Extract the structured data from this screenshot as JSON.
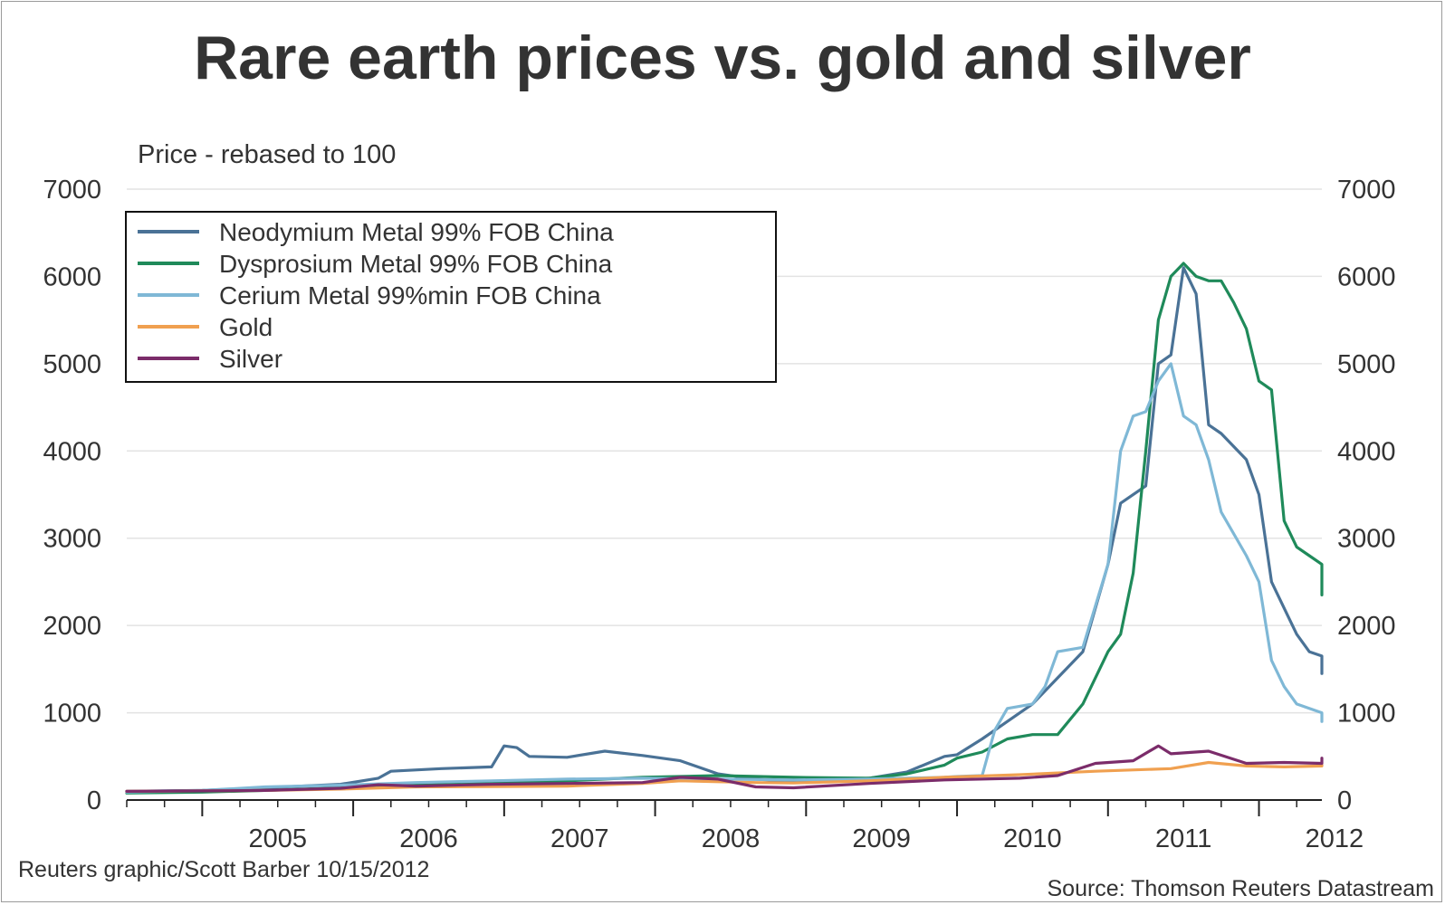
{
  "chart_data": {
    "type": "line",
    "title": "Rare earth prices vs. gold and silver",
    "ylabel": "Price - rebased to 100",
    "ylim": [
      0,
      7000
    ],
    "yticks": [
      0,
      1000,
      2000,
      3000,
      4000,
      5000,
      6000,
      7000
    ],
    "xlim": [
      "2004-07",
      "2012-06"
    ],
    "xtick_labels": [
      "2005",
      "2006",
      "2007",
      "2008",
      "2009",
      "2010",
      "2011",
      "2012"
    ],
    "grid": true,
    "legend_position": "top-left",
    "credit": "Reuters graphic/Scott Barber 10/15/2012",
    "source": "Source: Thomson Reuters Datastream",
    "series": [
      {
        "name": "Neodymium Metal 99% FOB China",
        "color": "#4a7296",
        "points": [
          [
            "2004-07",
            100
          ],
          [
            "2005-01",
            110
          ],
          [
            "2005-06",
            140
          ],
          [
            "2005-12",
            180
          ],
          [
            "2006-03",
            250
          ],
          [
            "2006-04",
            330
          ],
          [
            "2006-08",
            360
          ],
          [
            "2006-12",
            380
          ],
          [
            "2007-01",
            620
          ],
          [
            "2007-02",
            600
          ],
          [
            "2007-03",
            500
          ],
          [
            "2007-06",
            490
          ],
          [
            "2007-09",
            560
          ],
          [
            "2007-12",
            510
          ],
          [
            "2008-03",
            450
          ],
          [
            "2008-06",
            300
          ],
          [
            "2008-09",
            240
          ],
          [
            "2008-12",
            210
          ],
          [
            "2009-03",
            220
          ],
          [
            "2009-06",
            250
          ],
          [
            "2009-09",
            320
          ],
          [
            "2009-12",
            500
          ],
          [
            "2010-01",
            520
          ],
          [
            "2010-03",
            700
          ],
          [
            "2010-05",
            900
          ],
          [
            "2010-07",
            1100
          ],
          [
            "2010-09",
            1400
          ],
          [
            "2010-11",
            1700
          ],
          [
            "2011-01",
            2700
          ],
          [
            "2011-02",
            3400
          ],
          [
            "2011-04",
            3600
          ],
          [
            "2011-05",
            5000
          ],
          [
            "2011-06",
            5100
          ],
          [
            "2011-07",
            6100
          ],
          [
            "2011-08",
            5800
          ],
          [
            "2011-09",
            4300
          ],
          [
            "2011-10",
            4200
          ],
          [
            "2011-12",
            3900
          ],
          [
            "2012-01",
            3500
          ],
          [
            "2012-02",
            2500
          ],
          [
            "2012-03",
            2200
          ],
          [
            "2012-04",
            1900
          ],
          [
            "2012-05",
            1700
          ],
          [
            "2012-06",
            1650
          ],
          [
            "2012-06",
            1450
          ]
        ]
      },
      {
        "name": "Dysprosium Metal 99% FOB China",
        "color": "#1f8a5a",
        "points": [
          [
            "2004-07",
            80
          ],
          [
            "2005-01",
            90
          ],
          [
            "2005-06",
            110
          ],
          [
            "2005-12",
            140
          ],
          [
            "2006-06",
            170
          ],
          [
            "2006-12",
            190
          ],
          [
            "2007-06",
            220
          ],
          [
            "2007-12",
            260
          ],
          [
            "2008-06",
            280
          ],
          [
            "2008-12",
            260
          ],
          [
            "2009-06",
            250
          ],
          [
            "2009-09",
            300
          ],
          [
            "2009-12",
            400
          ],
          [
            "2010-01",
            480
          ],
          [
            "2010-03",
            550
          ],
          [
            "2010-05",
            700
          ],
          [
            "2010-07",
            750
          ],
          [
            "2010-09",
            750
          ],
          [
            "2010-11",
            1100
          ],
          [
            "2011-01",
            1700
          ],
          [
            "2011-02",
            1900
          ],
          [
            "2011-03",
            2600
          ],
          [
            "2011-04",
            4000
          ],
          [
            "2011-05",
            5500
          ],
          [
            "2011-06",
            6000
          ],
          [
            "2011-07",
            6150
          ],
          [
            "2011-08",
            6000
          ],
          [
            "2011-09",
            5950
          ],
          [
            "2011-10",
            5950
          ],
          [
            "2011-11",
            5700
          ],
          [
            "2011-12",
            5400
          ],
          [
            "2012-01",
            4800
          ],
          [
            "2012-02",
            4700
          ],
          [
            "2012-03",
            3200
          ],
          [
            "2012-04",
            2900
          ],
          [
            "2012-05",
            2800
          ],
          [
            "2012-06",
            2700
          ],
          [
            "2012-06",
            2350
          ]
        ]
      },
      {
        "name": "Cerium Metal 99%min FOB China",
        "color": "#7fb8d6",
        "points": [
          [
            "2004-07",
            90
          ],
          [
            "2005-01",
            110
          ],
          [
            "2005-06",
            150
          ],
          [
            "2005-12",
            170
          ],
          [
            "2006-06",
            200
          ],
          [
            "2006-12",
            220
          ],
          [
            "2007-06",
            240
          ],
          [
            "2007-12",
            250
          ],
          [
            "2008-06",
            240
          ],
          [
            "2008-12",
            230
          ],
          [
            "2009-06",
            240
          ],
          [
            "2009-09",
            250
          ],
          [
            "2009-12",
            260
          ],
          [
            "2010-01",
            270
          ],
          [
            "2010-03",
            280
          ],
          [
            "2010-04",
            800
          ],
          [
            "2010-05",
            1050
          ],
          [
            "2010-07",
            1100
          ],
          [
            "2010-08",
            1300
          ],
          [
            "2010-09",
            1700
          ],
          [
            "2010-11",
            1750
          ],
          [
            "2011-01",
            2700
          ],
          [
            "2011-02",
            4000
          ],
          [
            "2011-03",
            4400
          ],
          [
            "2011-04",
            4450
          ],
          [
            "2011-05",
            4800
          ],
          [
            "2011-06",
            5000
          ],
          [
            "2011-07",
            4400
          ],
          [
            "2011-08",
            4300
          ],
          [
            "2011-09",
            3900
          ],
          [
            "2011-10",
            3300
          ],
          [
            "2011-12",
            2800
          ],
          [
            "2012-01",
            2500
          ],
          [
            "2012-02",
            1600
          ],
          [
            "2012-03",
            1300
          ],
          [
            "2012-04",
            1100
          ],
          [
            "2012-05",
            1050
          ],
          [
            "2012-06",
            1000
          ],
          [
            "2012-06",
            900
          ]
        ]
      },
      {
        "name": "Gold",
        "color": "#f0a050",
        "points": [
          [
            "2004-07",
            100
          ],
          [
            "2005-01",
            105
          ],
          [
            "2005-06",
            110
          ],
          [
            "2005-12",
            125
          ],
          [
            "2006-06",
            150
          ],
          [
            "2006-12",
            155
          ],
          [
            "2007-06",
            160
          ],
          [
            "2007-12",
            190
          ],
          [
            "2008-03",
            220
          ],
          [
            "2008-06",
            210
          ],
          [
            "2008-09",
            200
          ],
          [
            "2008-12",
            195
          ],
          [
            "2009-06",
            220
          ],
          [
            "2009-12",
            260
          ],
          [
            "2010-06",
            290
          ],
          [
            "2010-12",
            330
          ],
          [
            "2011-06",
            360
          ],
          [
            "2011-09",
            430
          ],
          [
            "2011-12",
            390
          ],
          [
            "2012-03",
            380
          ],
          [
            "2012-06",
            390
          ],
          [
            "2012-06",
            400
          ]
        ]
      },
      {
        "name": "Silver",
        "color": "#7b2c6a",
        "points": [
          [
            "2004-07",
            100
          ],
          [
            "2005-01",
            105
          ],
          [
            "2005-06",
            110
          ],
          [
            "2005-12",
            135
          ],
          [
            "2006-03",
            175
          ],
          [
            "2006-06",
            160
          ],
          [
            "2006-12",
            180
          ],
          [
            "2007-06",
            190
          ],
          [
            "2007-12",
            200
          ],
          [
            "2008-03",
            260
          ],
          [
            "2008-06",
            240
          ],
          [
            "2008-09",
            150
          ],
          [
            "2008-12",
            140
          ],
          [
            "2009-06",
            190
          ],
          [
            "2009-12",
            230
          ],
          [
            "2010-06",
            250
          ],
          [
            "2010-09",
            280
          ],
          [
            "2010-12",
            420
          ],
          [
            "2011-03",
            450
          ],
          [
            "2011-05",
            620
          ],
          [
            "2011-06",
            530
          ],
          [
            "2011-09",
            560
          ],
          [
            "2011-12",
            420
          ],
          [
            "2012-03",
            430
          ],
          [
            "2012-06",
            420
          ],
          [
            "2012-06",
            480
          ]
        ]
      }
    ]
  }
}
